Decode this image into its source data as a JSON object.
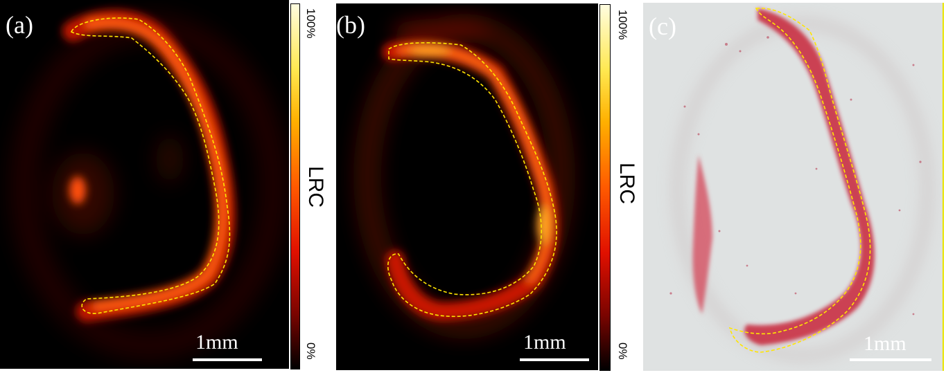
{
  "panels": [
    {
      "label": "(a)",
      "scale_bar": "1mm",
      "colorbar": {
        "title": "LRC",
        "max_label": "100%",
        "min_label": "0%"
      }
    },
    {
      "label": "(b)",
      "scale_bar": "1mm",
      "colorbar": {
        "title": "LRC",
        "max_label": "100%",
        "min_label": "0%"
      }
    },
    {
      "label": "(c)",
      "scale_bar": "1mm"
    }
  ],
  "colors": {
    "outline": "#ffe600",
    "heat_low": "#000000",
    "heat_mid": "#e01000",
    "heat_high": "#fffde0",
    "histology_bg": "#dfe2e2",
    "tissue": "#c8243a"
  }
}
